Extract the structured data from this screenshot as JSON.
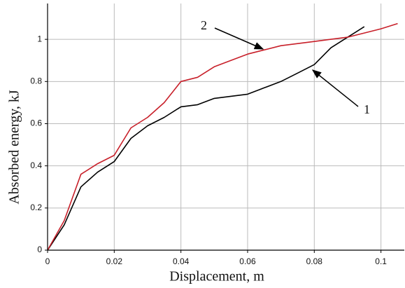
{
  "chart_data": {
    "type": "line",
    "x_label": "Displacement, m",
    "y_label": "Absorbed energy, kJ",
    "x": [
      0,
      0.005,
      0.01,
      0.015,
      0.02,
      0.025,
      0.03,
      0.035,
      0.04,
      0.045,
      0.05,
      0.055,
      0.06,
      0.065,
      0.07,
      0.075,
      0.08,
      0.085,
      0.09,
      0.095,
      0.1,
      0.105
    ],
    "series": [
      {
        "name": "1",
        "color": "#000000",
        "values": [
          0,
          0.12,
          0.3,
          0.37,
          0.42,
          0.53,
          0.59,
          0.63,
          0.68,
          0.69,
          0.72,
          0.73,
          0.74,
          0.77,
          0.8,
          0.84,
          0.88,
          0.96,
          1.01,
          1.06,
          null,
          null
        ]
      },
      {
        "name": "2",
        "color": "#c8202a",
        "values": [
          0,
          0.14,
          0.36,
          0.41,
          0.45,
          0.58,
          0.63,
          0.7,
          0.8,
          0.82,
          0.87,
          0.9,
          0.93,
          0.95,
          0.97,
          0.98,
          0.99,
          1.0,
          1.01,
          1.03,
          1.05,
          1.075
        ]
      }
    ],
    "xlim": [
      0,
      0.107
    ],
    "ylim": [
      0,
      1.17
    ],
    "xticks": [
      0,
      0.02,
      0.04,
      0.06,
      0.08,
      0.1
    ],
    "yticks": [
      0,
      0.2,
      0.4,
      0.6,
      0.8,
      1
    ],
    "grid": true
  }
}
